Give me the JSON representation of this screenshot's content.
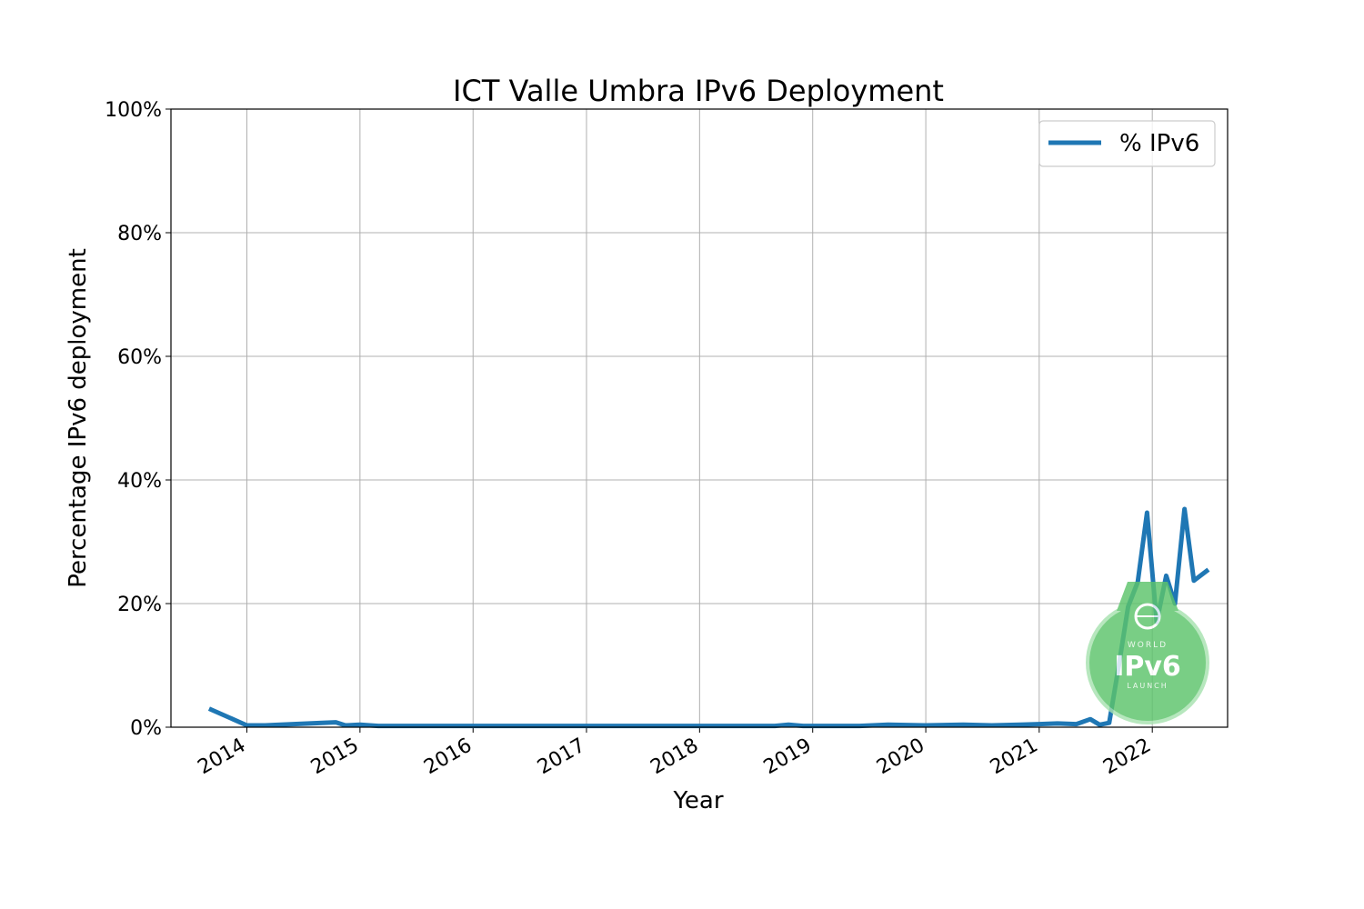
{
  "chart_data": {
    "type": "line",
    "title": "ICT Valle Umbra IPv6 Deployment",
    "xlabel": "Year",
    "ylabel": "Percentage IPv6 deployment",
    "x_ticks": [
      "2014",
      "2015",
      "2016",
      "2017",
      "2018",
      "2019",
      "2020",
      "2021",
      "2022"
    ],
    "y_ticks": [
      "0%",
      "20%",
      "40%",
      "60%",
      "80%",
      "100%"
    ],
    "xlim": [
      "2013-05-01",
      "2022-09-01"
    ],
    "ylim": [
      0,
      100
    ],
    "grid": true,
    "legend_position": "top-right",
    "series": [
      {
        "name": "% IPv6",
        "color": "#1f77b4",
        "points": [
          [
            "2013-09-01",
            3.0
          ],
          [
            "2014-01-01",
            0.3
          ],
          [
            "2014-03-01",
            0.3
          ],
          [
            "2014-06-01",
            0.5
          ],
          [
            "2014-09-01",
            0.7
          ],
          [
            "2014-10-15",
            0.8
          ],
          [
            "2014-11-15",
            0.3
          ],
          [
            "2015-01-01",
            0.4
          ],
          [
            "2015-03-01",
            0.2
          ],
          [
            "2016-01-01",
            0.2
          ],
          [
            "2017-01-01",
            0.2
          ],
          [
            "2018-01-01",
            0.2
          ],
          [
            "2018-09-01",
            0.2
          ],
          [
            "2018-10-15",
            0.4
          ],
          [
            "2018-12-01",
            0.2
          ],
          [
            "2019-06-01",
            0.2
          ],
          [
            "2019-09-01",
            0.4
          ],
          [
            "2020-01-01",
            0.3
          ],
          [
            "2020-05-01",
            0.4
          ],
          [
            "2020-08-01",
            0.3
          ],
          [
            "2020-11-01",
            0.4
          ],
          [
            "2021-01-01",
            0.5
          ],
          [
            "2021-03-01",
            0.6
          ],
          [
            "2021-05-01",
            0.5
          ],
          [
            "2021-06-15",
            1.3
          ],
          [
            "2021-07-15",
            0.4
          ],
          [
            "2021-08-15",
            0.7
          ],
          [
            "2021-09-15",
            10.0
          ],
          [
            "2021-10-15",
            19.5
          ],
          [
            "2021-11-15",
            23.5
          ],
          [
            "2021-12-15",
            34.7
          ],
          [
            "2022-01-15",
            17.0
          ],
          [
            "2022-02-15",
            24.5
          ],
          [
            "2022-03-15",
            20.0
          ],
          [
            "2022-04-15",
            35.3
          ],
          [
            "2022-05-15",
            23.7
          ],
          [
            "2022-07-01",
            25.5
          ]
        ]
      }
    ]
  },
  "watermark": {
    "top_text": "WORLD",
    "main_text": "IPv6",
    "bottom_text": "LAUNCH",
    "color": "#5cc46b"
  }
}
